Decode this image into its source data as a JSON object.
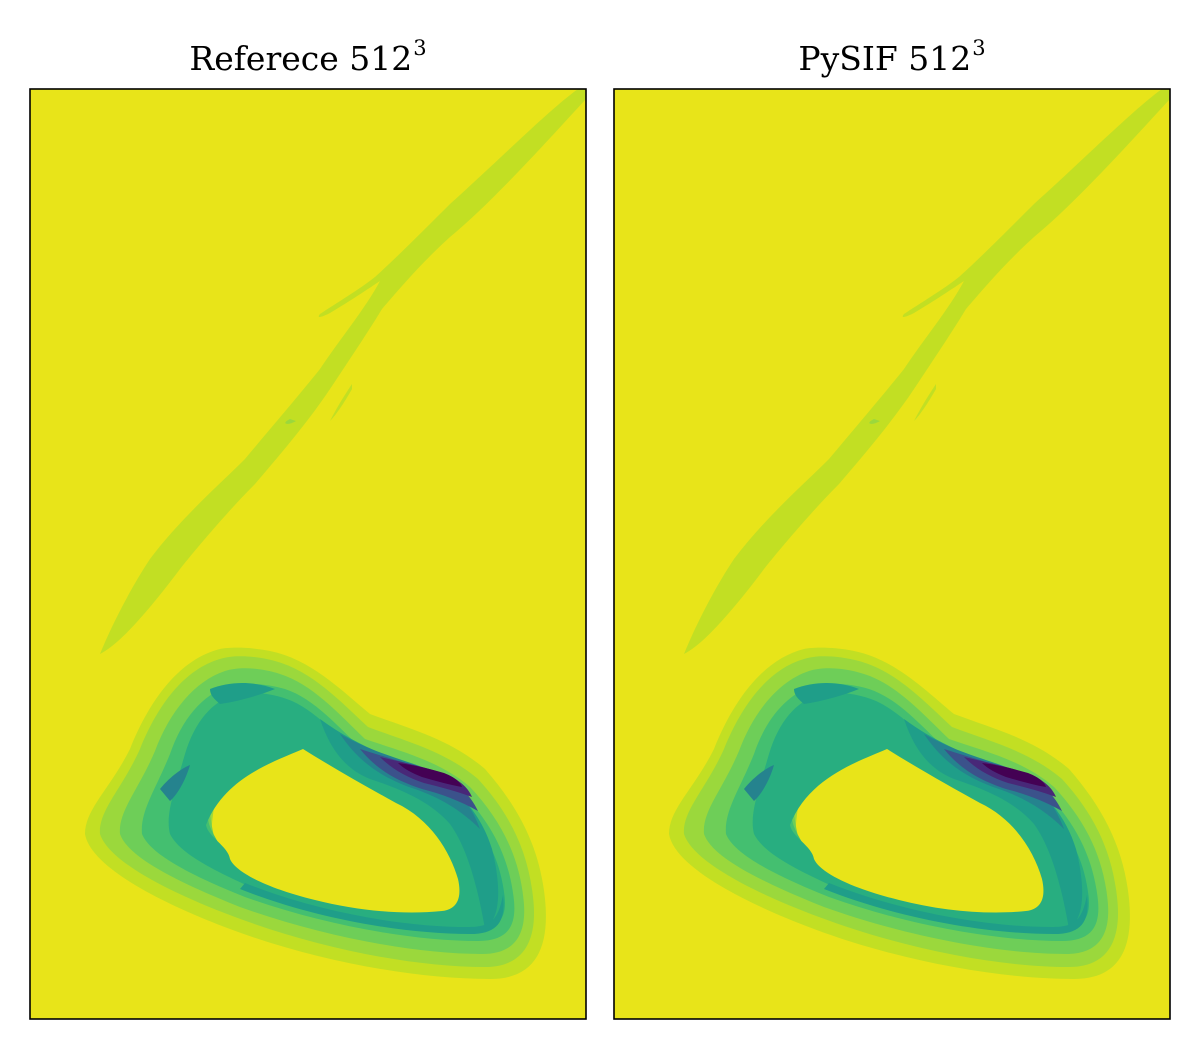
{
  "chart_data": [
    {
      "type": "heatmap",
      "title": "Referece 512",
      "title_superscript": "3",
      "colormap": "viridis",
      "axes": "hidden"
    },
    {
      "type": "heatmap",
      "title": "PySIF 512",
      "title_superscript": "3",
      "colormap": "viridis",
      "axes": "hidden"
    }
  ],
  "colors": {
    "background": "#e8e419",
    "level1": "#c2df23",
    "level2": "#9bd83c",
    "level3": "#6ece58",
    "level4": "#44bf70",
    "level5": "#28ae80",
    "level6": "#1f9e89",
    "level7": "#25838e",
    "level8": "#2d708e",
    "level9": "#3b528b",
    "level10": "#482878",
    "level11": "#440154"
  }
}
